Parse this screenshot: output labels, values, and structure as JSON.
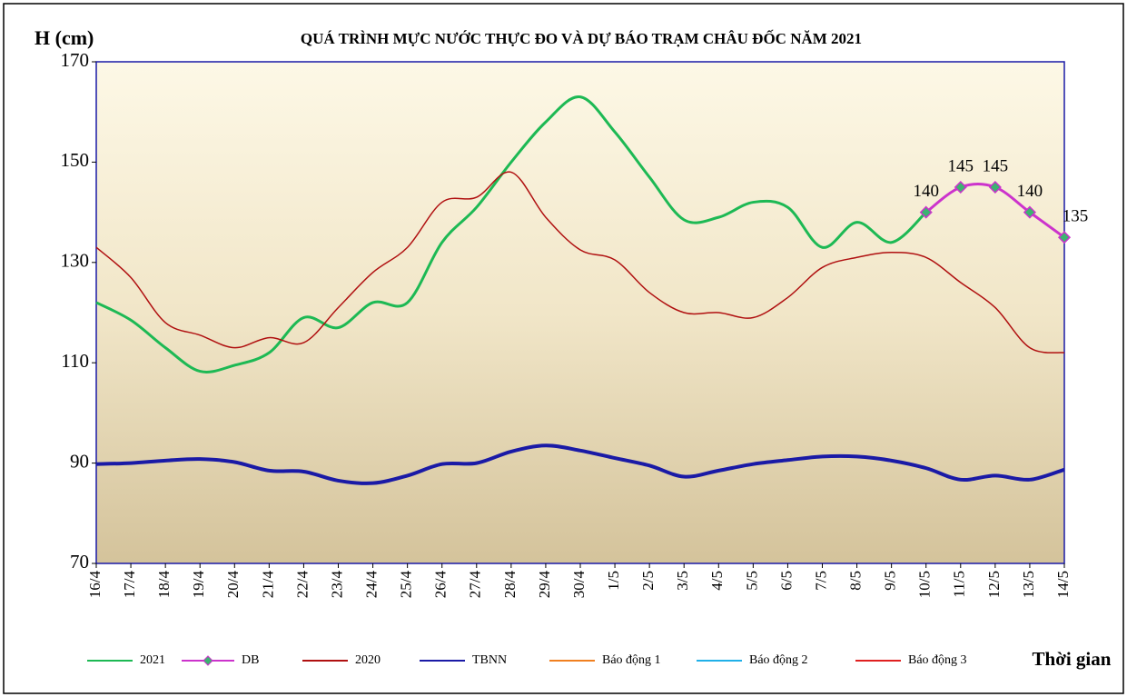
{
  "chart_data": {
    "type": "line",
    "title": "QUÁ TRÌNH MỰC NƯỚC THỰC ĐO VÀ DỰ BÁO TRẠM CHÂU ĐỐC NĂM 2021",
    "y_label": "H (cm)",
    "x_label": "Thời gian",
    "categories": [
      "16/4",
      "17/4",
      "18/4",
      "19/4",
      "20/4",
      "21/4",
      "22/4",
      "23/4",
      "24/4",
      "25/4",
      "26/4",
      "27/4",
      "28/4",
      "29/4",
      "30/4",
      "1/5",
      "2/5",
      "3/5",
      "4/5",
      "5/5",
      "6/5",
      "7/5",
      "8/5",
      "9/5",
      "10/5",
      "11/5",
      "12/5",
      "13/5",
      "14/5"
    ],
    "ylim": [
      70,
      170
    ],
    "yticks": [
      70,
      90,
      110,
      130,
      150,
      170
    ],
    "series": [
      {
        "name": "2021",
        "color": "#1db954",
        "width": 3,
        "values": [
          122,
          118.5,
          113,
          108.3,
          109.5,
          112,
          119,
          117,
          122,
          122,
          134,
          141,
          150,
          158,
          163,
          156,
          147,
          138.5,
          139,
          142,
          141,
          133,
          138,
          134,
          140,
          null,
          null,
          null,
          null
        ]
      },
      {
        "name": "DB",
        "color": "#cc33cc",
        "width": 3,
        "marker": true,
        "values": [
          null,
          null,
          null,
          null,
          null,
          null,
          null,
          null,
          null,
          null,
          null,
          null,
          null,
          null,
          null,
          null,
          null,
          null,
          null,
          null,
          null,
          null,
          null,
          null,
          140,
          145,
          145,
          140,
          135
        ]
      },
      {
        "name": "2020",
        "color": "#b01010",
        "width": 1.5,
        "values": [
          133,
          127,
          118,
          115.5,
          113,
          115,
          114,
          121,
          128,
          133,
          142,
          143,
          148,
          139,
          132.5,
          130.5,
          124,
          120,
          120,
          119,
          123,
          129,
          131,
          132,
          131,
          126,
          121,
          113,
          112
        ]
      },
      {
        "name": "TBNN",
        "color": "#1a1aa6",
        "width": 4,
        "values": [
          89.8,
          90,
          90.5,
          90.8,
          90.2,
          88.5,
          88.3,
          86.5,
          86,
          87.5,
          89.8,
          90,
          92.3,
          93.5,
          92.5,
          91,
          89.5,
          87.3,
          88.5,
          89.8,
          90.6,
          91.3,
          91.3,
          90.5,
          89,
          86.7,
          87.5,
          86.7,
          88.7
        ]
      },
      {
        "name": "Báo động 1",
        "color": "#f08020",
        "width": 2,
        "values": [
          null,
          null,
          null,
          null,
          null,
          null,
          null,
          null,
          null,
          null,
          null,
          null,
          null,
          null,
          null,
          null,
          null,
          null,
          null,
          null,
          null,
          null,
          null,
          null,
          null,
          null,
          null,
          null,
          null
        ]
      },
      {
        "name": "Báo động 2",
        "color": "#20b0e8",
        "width": 2,
        "values": [
          null,
          null,
          null,
          null,
          null,
          null,
          null,
          null,
          null,
          null,
          null,
          null,
          null,
          null,
          null,
          null,
          null,
          null,
          null,
          null,
          null,
          null,
          null,
          null,
          null,
          null,
          null,
          null,
          null
        ]
      },
      {
        "name": "Báo động 3",
        "color": "#e02020",
        "width": 2,
        "values": [
          null,
          null,
          null,
          null,
          null,
          null,
          null,
          null,
          null,
          null,
          null,
          null,
          null,
          null,
          null,
          null,
          null,
          null,
          null,
          null,
          null,
          null,
          null,
          null,
          null,
          null,
          null,
          null,
          null
        ]
      }
    ]
  }
}
